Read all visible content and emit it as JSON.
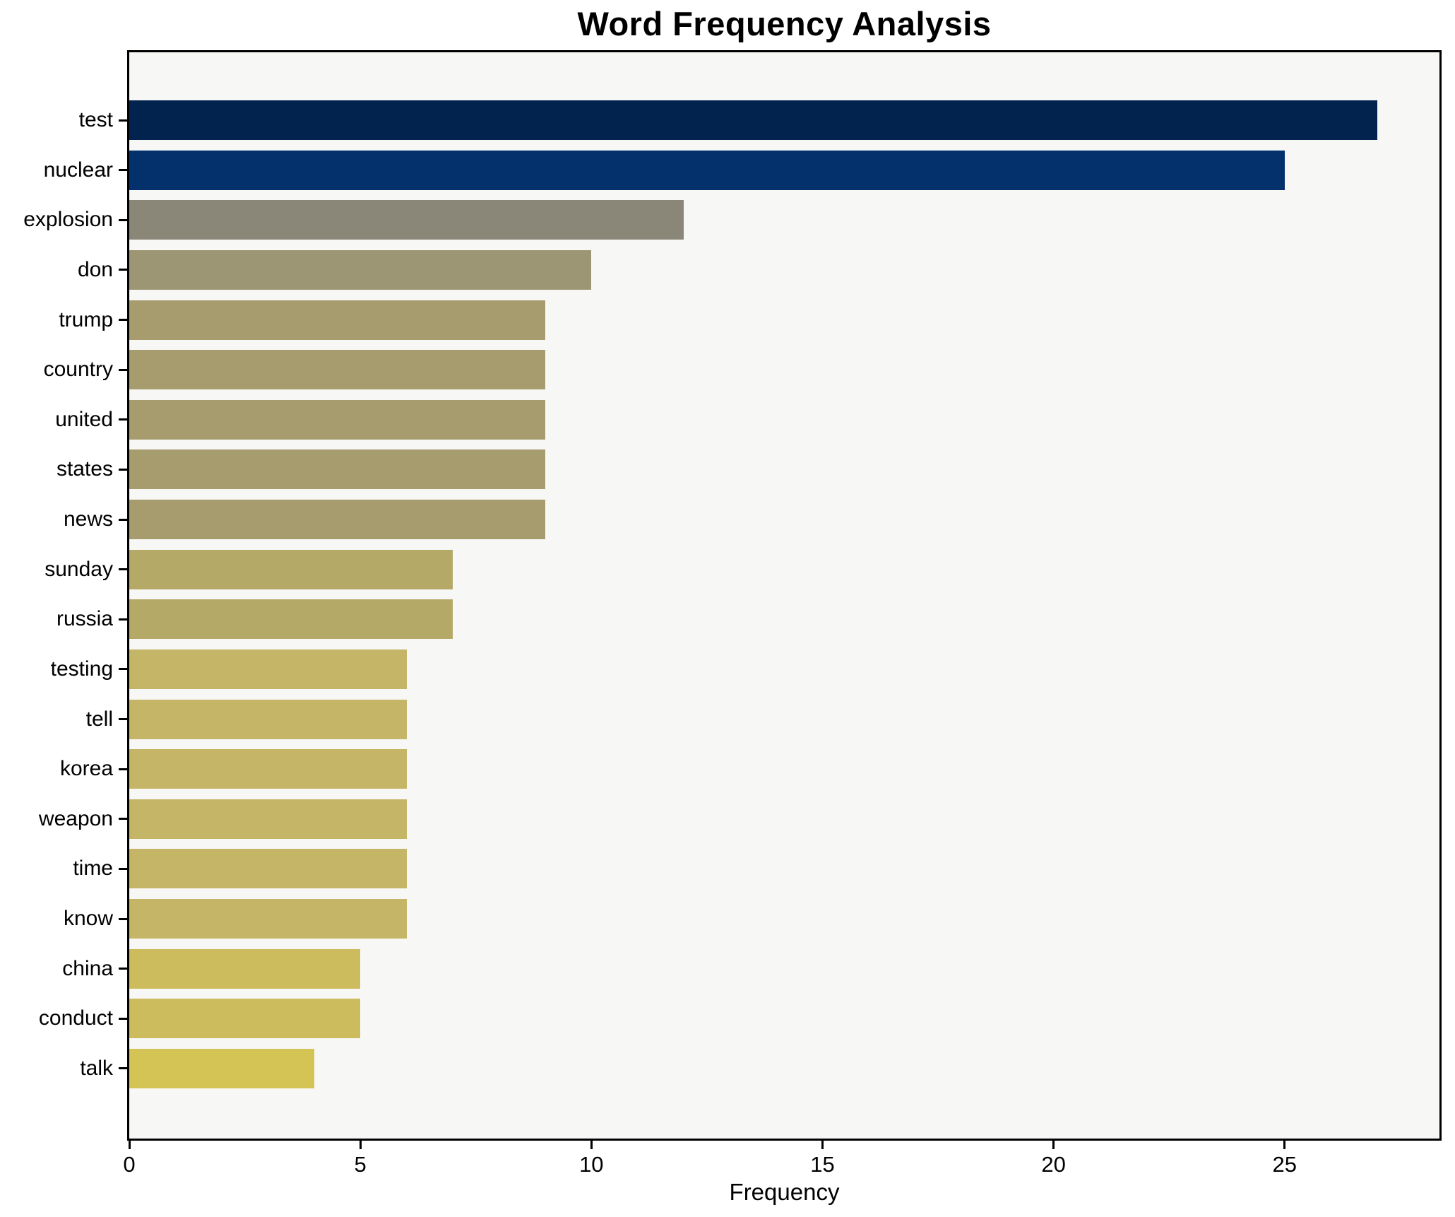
{
  "chart_data": {
    "type": "bar",
    "orientation": "horizontal",
    "title": "Word Frequency Analysis",
    "xlabel": "Frequency",
    "ylabel": "",
    "grid": false,
    "legend": null,
    "xlim": [
      0,
      28.35
    ],
    "x_ticks": [
      0,
      5,
      10,
      15,
      20,
      25
    ],
    "categories": [
      "test",
      "nuclear",
      "explosion",
      "don",
      "trump",
      "country",
      "united",
      "states",
      "news",
      "sunday",
      "russia",
      "testing",
      "tell",
      "korea",
      "weapon",
      "time",
      "know",
      "china",
      "conduct",
      "talk"
    ],
    "values": [
      27,
      25,
      12,
      10,
      9,
      9,
      9,
      9,
      9,
      7,
      7,
      6,
      6,
      6,
      6,
      6,
      6,
      5,
      5,
      4
    ],
    "bar_colors": [
      "#02234d",
      "#04316c",
      "#8a8778",
      "#9c9674",
      "#a69c6e",
      "#a69c6e",
      "#a69c6e",
      "#a69c6e",
      "#a69c6e",
      "#b5a967",
      "#b5a967",
      "#c5b566",
      "#c5b566",
      "#c5b566",
      "#c5b566",
      "#c5b566",
      "#c5b566",
      "#cdbc5e",
      "#cdbc5e",
      "#d4c455"
    ],
    "colors": {
      "plot_background": "#f7f7f6",
      "figure_background": "#ffffff",
      "spine": "#000000",
      "text": "#000000"
    }
  }
}
